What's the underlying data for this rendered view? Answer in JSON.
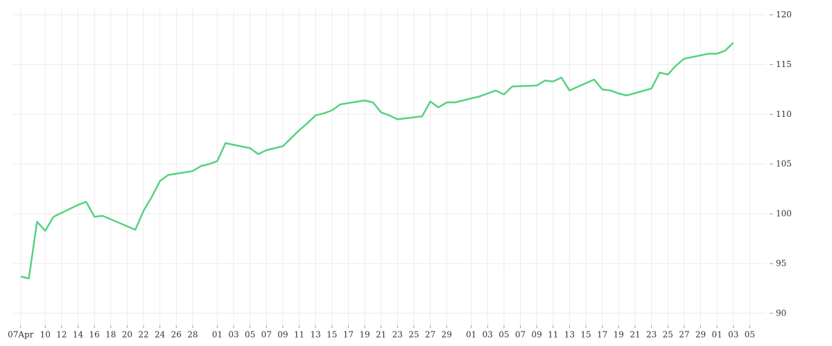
{
  "chart_data": {
    "type": "line",
    "x": [
      "04-07",
      "04-08",
      "04-09",
      "04-10",
      "04-11",
      "04-14",
      "04-15",
      "04-16",
      "04-17",
      "04-21",
      "04-22",
      "04-23",
      "04-24",
      "04-25",
      "04-28",
      "04-29",
      "04-30",
      "05-01",
      "05-02",
      "05-05",
      "05-06",
      "05-07",
      "05-09",
      "05-10",
      "05-11",
      "05-12",
      "05-13",
      "05-14",
      "05-15",
      "05-16",
      "05-19",
      "05-20",
      "05-21",
      "05-22",
      "05-23",
      "05-26",
      "05-27",
      "05-28",
      "05-29",
      "05-30",
      "06-02",
      "06-03",
      "06-04",
      "06-05",
      "06-06",
      "06-09",
      "06-10",
      "06-11",
      "06-12",
      "06-13",
      "06-16",
      "06-17",
      "06-18",
      "06-19",
      "06-20",
      "06-23",
      "06-24",
      "06-25",
      "06-26",
      "06-27",
      "06-30",
      "07-01",
      "07-02",
      "07-03"
    ],
    "series": [
      {
        "color": "#55d27f",
        "values": [
          93.7,
          93.5,
          99.2,
          98.3,
          99.7,
          100.9,
          101.2,
          99.7,
          99.8,
          98.4,
          100.3,
          101.7,
          103.3,
          103.9,
          104.3,
          104.8,
          105.0,
          105.3,
          107.1,
          106.6,
          106.0,
          106.4,
          106.8,
          107.6,
          108.4,
          109.1,
          109.9,
          110.1,
          110.4,
          111.0,
          111.4,
          111.2,
          110.2,
          109.9,
          109.5,
          109.8,
          111.3,
          110.7,
          111.2,
          111.2,
          111.8,
          112.1,
          112.4,
          112.0,
          112.8,
          112.9,
          113.4,
          113.3,
          113.7,
          112.4,
          113.5,
          112.5,
          112.4,
          112.1,
          111.9,
          112.6,
          114.2,
          114.0,
          114.9,
          115.6,
          116.1,
          116.1,
          116.4,
          117.2
        ]
      }
    ],
    "xlim": [
      "04-06",
      "07-07"
    ],
    "xticks": [
      {
        "value": "04-07",
        "label": "07Apr"
      },
      {
        "value": "04-10",
        "label": "10"
      },
      {
        "value": "04-12",
        "label": "12"
      },
      {
        "value": "04-14",
        "label": "14"
      },
      {
        "value": "04-16",
        "label": "16"
      },
      {
        "value": "04-18",
        "label": "18"
      },
      {
        "value": "04-20",
        "label": "20"
      },
      {
        "value": "04-22",
        "label": "22"
      },
      {
        "value": "04-24",
        "label": "24"
      },
      {
        "value": "04-26",
        "label": "26"
      },
      {
        "value": "04-28",
        "label": "28"
      },
      {
        "value": "05-01",
        "label": "01"
      },
      {
        "value": "05-03",
        "label": "03"
      },
      {
        "value": "05-05",
        "label": "05"
      },
      {
        "value": "05-07",
        "label": "07"
      },
      {
        "value": "05-09",
        "label": "09"
      },
      {
        "value": "05-11",
        "label": "11"
      },
      {
        "value": "05-13",
        "label": "13"
      },
      {
        "value": "05-15",
        "label": "15"
      },
      {
        "value": "05-17",
        "label": "17"
      },
      {
        "value": "05-19",
        "label": "19"
      },
      {
        "value": "05-21",
        "label": "21"
      },
      {
        "value": "05-23",
        "label": "23"
      },
      {
        "value": "05-25",
        "label": "25"
      },
      {
        "value": "05-27",
        "label": "27"
      },
      {
        "value": "05-29",
        "label": "29"
      },
      {
        "value": "06-01",
        "label": "01"
      },
      {
        "value": "06-03",
        "label": "03"
      },
      {
        "value": "06-05",
        "label": "05"
      },
      {
        "value": "06-07",
        "label": "07"
      },
      {
        "value": "06-09",
        "label": "09"
      },
      {
        "value": "06-11",
        "label": "11"
      },
      {
        "value": "06-13",
        "label": "13"
      },
      {
        "value": "06-15",
        "label": "15"
      },
      {
        "value": "06-17",
        "label": "17"
      },
      {
        "value": "06-19",
        "label": "19"
      },
      {
        "value": "06-21",
        "label": "21"
      },
      {
        "value": "06-23",
        "label": "23"
      },
      {
        "value": "06-25",
        "label": "25"
      },
      {
        "value": "06-27",
        "label": "27"
      },
      {
        "value": "06-29",
        "label": "29"
      },
      {
        "value": "07-01",
        "label": "01"
      },
      {
        "value": "07-03",
        "label": "03"
      },
      {
        "value": "07-05",
        "label": "05"
      }
    ],
    "ylim": [
      88.8,
      120.8
    ],
    "yticks": [
      90,
      95,
      100,
      105,
      110,
      115,
      120
    ],
    "grid": true
  }
}
